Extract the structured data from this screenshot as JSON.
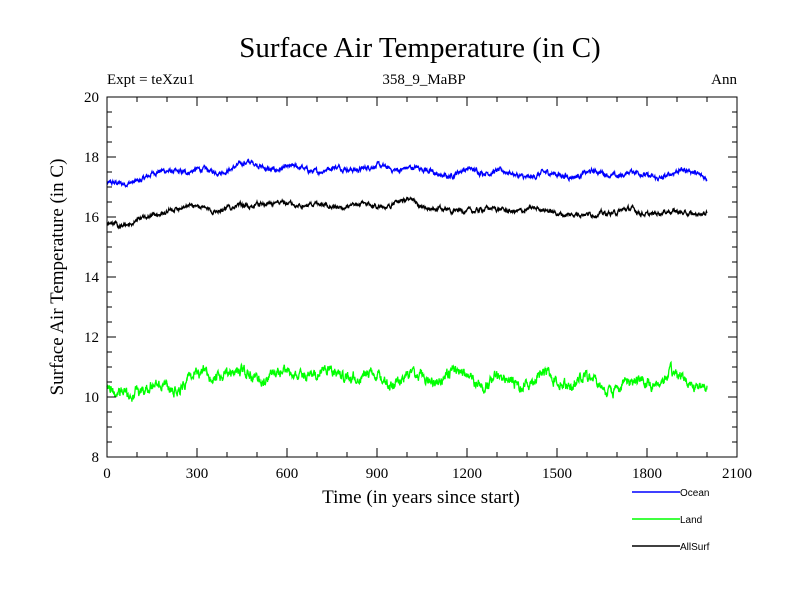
{
  "chart_data": {
    "type": "line",
    "title": "Surface Air Temperature (in C)",
    "subtitle_left": "Expt = teXzu1",
    "subtitle_center": "358_9_MaBP",
    "subtitle_right": "Ann",
    "xlabel": "Time (in years since start)",
    "ylabel": "Surface Air Temperature (in C)",
    "xlim": [
      0,
      2100
    ],
    "ylim": [
      8,
      20
    ],
    "xticks": [
      0,
      300,
      600,
      900,
      1200,
      1500,
      1800,
      2100
    ],
    "yticks": [
      8,
      10,
      12,
      14,
      16,
      18,
      20
    ],
    "x_minor_step": 100,
    "y_minor_step": 0.5,
    "series": [
      {
        "name": "Ocean",
        "color": "#0000ff",
        "x": [
          0,
          50,
          100,
          150,
          200,
          250,
          300,
          350,
          400,
          450,
          500,
          550,
          600,
          650,
          700,
          750,
          800,
          850,
          900,
          950,
          1000,
          1050,
          1100,
          1150,
          1200,
          1250,
          1300,
          1350,
          1400,
          1450,
          1500,
          1550,
          1600,
          1650,
          1700,
          1750,
          1800,
          1850,
          1900,
          1950,
          2000
        ],
        "values": [
          17.1,
          17.0,
          17.2,
          17.4,
          17.5,
          17.6,
          17.6,
          17.5,
          17.6,
          17.7,
          17.7,
          17.6,
          17.6,
          17.7,
          17.6,
          17.6,
          17.6,
          17.6,
          17.6,
          17.6,
          17.7,
          17.6,
          17.5,
          17.4,
          17.5,
          17.5,
          17.5,
          17.4,
          17.4,
          17.5,
          17.4,
          17.4,
          17.4,
          17.4,
          17.4,
          17.5,
          17.4,
          17.4,
          17.5,
          17.5,
          17.3
        ],
        "noise": 0.2
      },
      {
        "name": "Land",
        "color": "#00ff00",
        "x": [
          0,
          50,
          100,
          150,
          200,
          250,
          300,
          350,
          400,
          450,
          500,
          550,
          600,
          650,
          700,
          750,
          800,
          850,
          900,
          950,
          1000,
          1050,
          1100,
          1150,
          1200,
          1250,
          1300,
          1350,
          1400,
          1450,
          1500,
          1550,
          1600,
          1650,
          1700,
          1750,
          1800,
          1850,
          1900,
          1950,
          2000
        ],
        "values": [
          10.0,
          10.1,
          10.3,
          10.4,
          10.5,
          10.5,
          10.6,
          10.6,
          10.7,
          10.7,
          10.8,
          10.8,
          10.8,
          10.8,
          10.7,
          10.7,
          10.7,
          10.7,
          10.8,
          10.7,
          10.7,
          10.6,
          10.6,
          10.6,
          10.7,
          10.6,
          10.6,
          10.6,
          10.6,
          10.6,
          10.5,
          10.5,
          10.5,
          10.5,
          10.5,
          10.5,
          10.5,
          10.5,
          10.5,
          10.5,
          10.5
        ],
        "noise": 0.45
      },
      {
        "name": "AllSurf",
        "color": "#000000",
        "x": [
          0,
          50,
          100,
          150,
          200,
          250,
          300,
          350,
          400,
          450,
          500,
          550,
          600,
          650,
          700,
          750,
          800,
          850,
          900,
          950,
          1000,
          1050,
          1100,
          1150,
          1200,
          1250,
          1300,
          1350,
          1400,
          1450,
          1500,
          1550,
          1600,
          1650,
          1700,
          1750,
          1800,
          1850,
          1900,
          1950,
          2000
        ],
        "values": [
          15.8,
          15.8,
          15.9,
          16.0,
          16.2,
          16.3,
          16.3,
          16.3,
          16.3,
          16.4,
          16.5,
          16.4,
          16.4,
          16.4,
          16.4,
          16.4,
          16.4,
          16.4,
          16.4,
          16.4,
          16.5,
          16.3,
          16.3,
          16.2,
          16.3,
          16.3,
          16.2,
          16.2,
          16.2,
          16.2,
          16.2,
          16.1,
          16.1,
          16.2,
          16.1,
          16.2,
          16.1,
          16.1,
          16.2,
          16.2,
          16.1
        ],
        "noise": 0.18
      }
    ],
    "legend_position": "bottom-right"
  }
}
